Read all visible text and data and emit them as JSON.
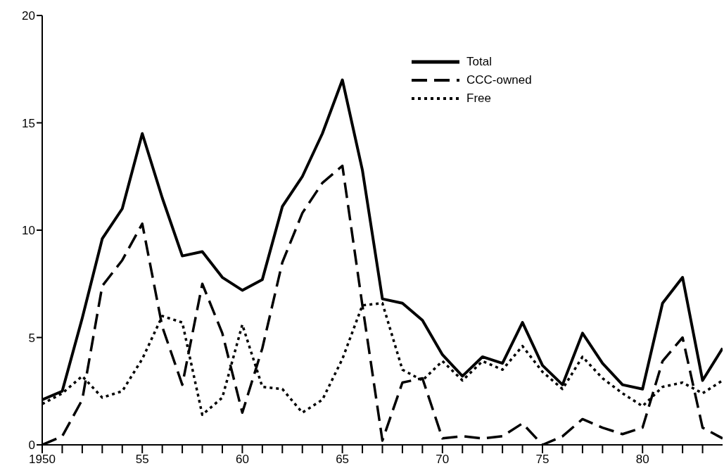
{
  "chart_data": {
    "type": "line",
    "x": [
      1950,
      1951,
      1952,
      1953,
      1954,
      1955,
      1956,
      1957,
      1958,
      1959,
      1960,
      1961,
      1962,
      1963,
      1964,
      1965,
      1966,
      1967,
      1968,
      1969,
      1970,
      1971,
      1972,
      1973,
      1974,
      1975,
      1976,
      1977,
      1978,
      1979,
      1980,
      1981,
      1982,
      1983,
      1984
    ],
    "series": [
      {
        "name": "Total",
        "color": "#000000",
        "line_style": "solid",
        "values": [
          2.1,
          2.5,
          5.9,
          9.6,
          11.0,
          14.5,
          11.5,
          8.8,
          9.0,
          7.8,
          7.2,
          7.7,
          11.1,
          12.5,
          14.5,
          17.0,
          12.8,
          6.8,
          6.6,
          5.8,
          4.2,
          3.2,
          4.1,
          3.8,
          5.7,
          3.7,
          2.8,
          5.2,
          3.8,
          2.8,
          2.6,
          6.6,
          7.8,
          3.0,
          4.5
        ]
      },
      {
        "name": "CCC-owned",
        "color": "#000000",
        "line_style": "dashed",
        "values": [
          0,
          0.4,
          2.1,
          7.4,
          8.6,
          10.3,
          5.5,
          2.8,
          7.5,
          5.2,
          1.5,
          4.5,
          8.5,
          10.8,
          12.2,
          13.0,
          6.5,
          0.2,
          2.9,
          3.1,
          0.3,
          0.4,
          0.3,
          0.4,
          1.0,
          0,
          0.4,
          1.2,
          0.8,
          0.5,
          0.8,
          3.9,
          5.0,
          0.8,
          0.3
        ]
      },
      {
        "name": "Free",
        "color": "#000000",
        "line_style": "dotted",
        "values": [
          1.9,
          2.4,
          3.2,
          2.2,
          2.5,
          4.0,
          6.0,
          5.7,
          1.4,
          2.2,
          5.6,
          2.7,
          2.6,
          1.5,
          2.1,
          4.0,
          6.5,
          6.6,
          3.5,
          3.0,
          3.9,
          3.0,
          3.9,
          3.5,
          4.6,
          3.4,
          2.6,
          4.1,
          3.1,
          2.4,
          1.8,
          2.7,
          2.9,
          2.4,
          3.0
        ]
      }
    ],
    "xlim": [
      1950,
      1984
    ],
    "xticks": [
      {
        "value": 1950,
        "label": "1950"
      },
      {
        "value": 1951,
        "label": null
      },
      {
        "value": 1952,
        "label": null
      },
      {
        "value": 1953,
        "label": null
      },
      {
        "value": 1954,
        "label": null
      },
      {
        "value": 1955,
        "label": "55"
      },
      {
        "value": 1956,
        "label": null
      },
      {
        "value": 1957,
        "label": null
      },
      {
        "value": 1958,
        "label": null
      },
      {
        "value": 1959,
        "label": null
      },
      {
        "value": 1960,
        "label": "60"
      },
      {
        "value": 1961,
        "label": null
      },
      {
        "value": 1962,
        "label": null
      },
      {
        "value": 1963,
        "label": null
      },
      {
        "value": 1964,
        "label": null
      },
      {
        "value": 1965,
        "label": "65"
      },
      {
        "value": 1966,
        "label": null
      },
      {
        "value": 1967,
        "label": null
      },
      {
        "value": 1968,
        "label": null
      },
      {
        "value": 1969,
        "label": null
      },
      {
        "value": 1970,
        "label": "70"
      },
      {
        "value": 1971,
        "label": null
      },
      {
        "value": 1972,
        "label": null
      },
      {
        "value": 1973,
        "label": null
      },
      {
        "value": 1974,
        "label": null
      },
      {
        "value": 1975,
        "label": "75"
      },
      {
        "value": 1976,
        "label": null
      },
      {
        "value": 1977,
        "label": null
      },
      {
        "value": 1978,
        "label": null
      },
      {
        "value": 1979,
        "label": null
      },
      {
        "value": 1980,
        "label": "80"
      },
      {
        "value": 1981,
        "label": null
      },
      {
        "value": 1982,
        "label": null
      },
      {
        "value": 1983,
        "label": null
      }
    ],
    "ylim": [
      0,
      20
    ],
    "yticks": [
      0,
      5,
      10,
      15,
      20
    ],
    "legend": "top right",
    "marker": "none"
  }
}
